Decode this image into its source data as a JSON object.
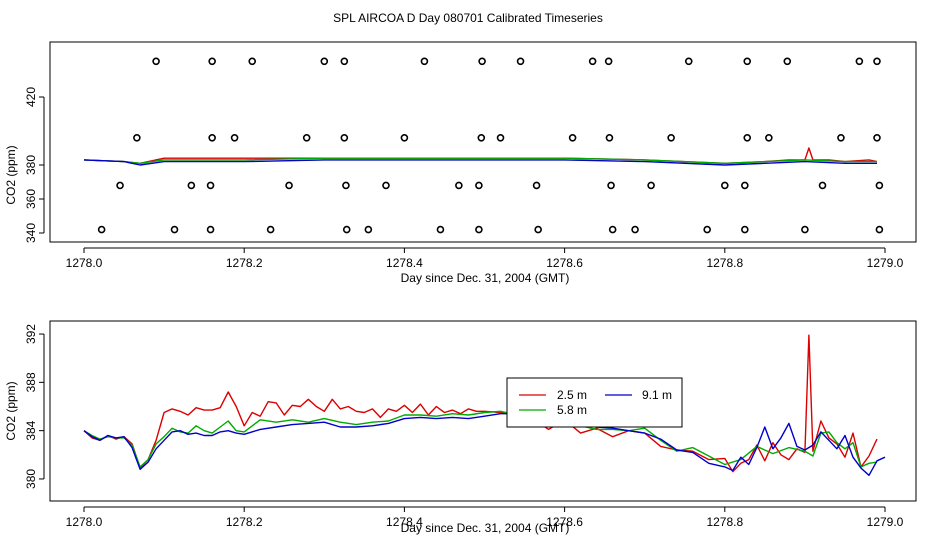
{
  "figure": {
    "title": "SPL AIRCOA D  Day 080701  Calibrated Timeseries"
  },
  "chart_data": [
    {
      "type": "line",
      "panel": "top",
      "xlabel": "Day since Dec. 31, 2004 (GMT)",
      "ylabel": "CO2 (ppm)",
      "xlim": [
        1278.0,
        1279.0
      ],
      "ylim": [
        340,
        450
      ],
      "xticks": [
        "1278.0",
        "1278.2",
        "1278.4",
        "1278.6",
        "1278.8",
        "1279.0"
      ],
      "xtick_values": [
        1278.0,
        1278.2,
        1278.4,
        1278.6,
        1278.8,
        1279.0
      ],
      "yticks": [
        "340",
        "360",
        "380",
        "420"
      ],
      "ytick_values": [
        340,
        360,
        380,
        420
      ],
      "series_style": {
        "color_2_5m": "#dd0000",
        "color_5_8m": "#00aa00",
        "color_9_1m": "#0000cc"
      },
      "series": [
        {
          "name": "2.5 m",
          "color": "#dd0000",
          "x": [
            1278.0,
            1278.05,
            1278.07,
            1278.1,
            1278.15,
            1278.2,
            1278.3,
            1278.4,
            1278.5,
            1278.6,
            1278.7,
            1278.8,
            1278.85,
            1278.88,
            1278.9,
            1278.905,
            1278.91,
            1278.93,
            1278.95,
            1278.98,
            1278.99
          ],
          "y": [
            383,
            382,
            381,
            384,
            384,
            384,
            384,
            384,
            384,
            384,
            383,
            381,
            382,
            383,
            383,
            390,
            383,
            383,
            382,
            383,
            382
          ]
        },
        {
          "name": "5.8 m",
          "color": "#00aa00",
          "x": [
            1278.0,
            1278.05,
            1278.07,
            1278.1,
            1278.2,
            1278.3,
            1278.4,
            1278.5,
            1278.6,
            1278.7,
            1278.8,
            1278.9,
            1278.95,
            1278.99
          ],
          "y": [
            383,
            382,
            381,
            383,
            383,
            384,
            384,
            384,
            384,
            383,
            381,
            383,
            382,
            382
          ]
        },
        {
          "name": "9.1 m",
          "color": "#0000cc",
          "x": [
            1278.0,
            1278.05,
            1278.07,
            1278.1,
            1278.2,
            1278.3,
            1278.4,
            1278.5,
            1278.6,
            1278.7,
            1278.8,
            1278.9,
            1278.95,
            1278.99
          ],
          "y": [
            383,
            382,
            380,
            382,
            382,
            383,
            383,
            383,
            383,
            382,
            380,
            382,
            381,
            381
          ]
        }
      ],
      "markers": {
        "style": "open-circle",
        "rows": [
          {
            "y": 441,
            "x": [
              1278.09,
              1278.16,
              1278.21,
              1278.3,
              1278.325,
              1278.425,
              1278.497,
              1278.545,
              1278.635,
              1278.655,
              1278.755,
              1278.828,
              1278.878,
              1278.968,
              1278.99
            ]
          },
          {
            "y": 396,
            "x": [
              1278.066,
              1278.16,
              1278.188,
              1278.278,
              1278.325,
              1278.4,
              1278.496,
              1278.52,
              1278.61,
              1278.656,
              1278.733,
              1278.828,
              1278.855,
              1278.945,
              1278.99
            ]
          },
          {
            "y": 368,
            "x": [
              1278.045,
              1278.134,
              1278.158,
              1278.256,
              1278.327,
              1278.377,
              1278.468,
              1278.493,
              1278.565,
              1278.658,
              1278.708,
              1278.8,
              1278.825,
              1278.922,
              1278.993
            ]
          },
          {
            "y": 342,
            "x": [
              1278.022,
              1278.113,
              1278.158,
              1278.233,
              1278.328,
              1278.355,
              1278.445,
              1278.493,
              1278.567,
              1278.66,
              1278.688,
              1278.778,
              1278.825,
              1278.9,
              1278.993
            ]
          }
        ]
      }
    },
    {
      "type": "line",
      "panel": "bottom",
      "xlabel": "Day since Dec. 31, 2004 (GMT)",
      "ylabel": "CO2 (ppm)",
      "xlim": [
        1278.0,
        1279.0
      ],
      "ylim": [
        379.5,
        392.5
      ],
      "xticks": [
        "1278.0",
        "1278.2",
        "1278.4",
        "1278.6",
        "1278.8",
        "1279.0"
      ],
      "xtick_values": [
        1278.0,
        1278.2,
        1278.4,
        1278.6,
        1278.8,
        1279.0
      ],
      "yticks": [
        "380",
        "384",
        "388",
        "392"
      ],
      "ytick_values": [
        380,
        384,
        388,
        392
      ],
      "legend": {
        "placement": "center-right",
        "entries": [
          "2.5 m",
          "5.8 m",
          "9.1 m"
        ]
      },
      "series": [
        {
          "name": "2.5 m",
          "color": "#dd0000",
          "x": [
            1278.0,
            1278.01,
            1278.02,
            1278.03,
            1278.04,
            1278.05,
            1278.06,
            1278.07,
            1278.08,
            1278.09,
            1278.1,
            1278.11,
            1278.12,
            1278.13,
            1278.14,
            1278.15,
            1278.16,
            1278.17,
            1278.18,
            1278.19,
            1278.2,
            1278.21,
            1278.22,
            1278.23,
            1278.24,
            1278.25,
            1278.26,
            1278.27,
            1278.28,
            1278.29,
            1278.3,
            1278.31,
            1278.32,
            1278.33,
            1278.34,
            1278.35,
            1278.36,
            1278.37,
            1278.38,
            1278.39,
            1278.4,
            1278.41,
            1278.42,
            1278.43,
            1278.44,
            1278.45,
            1278.46,
            1278.47,
            1278.48,
            1278.49,
            1278.5,
            1278.52,
            1278.54,
            1278.56,
            1278.58,
            1278.6,
            1278.62,
            1278.64,
            1278.66,
            1278.68,
            1278.7,
            1278.72,
            1278.74,
            1278.76,
            1278.78,
            1278.8,
            1278.81,
            1278.82,
            1278.83,
            1278.84,
            1278.85,
            1278.86,
            1278.87,
            1278.88,
            1278.89,
            1278.9,
            1278.905,
            1278.91,
            1278.92,
            1278.93,
            1278.94,
            1278.95,
            1278.96,
            1278.97,
            1278.98,
            1278.99
          ],
          "y": [
            384.0,
            383.4,
            383.2,
            383.6,
            383.3,
            383.5,
            382.9,
            380.9,
            381.6,
            383.2,
            385.5,
            385.8,
            385.6,
            385.3,
            385.9,
            385.7,
            385.7,
            385.9,
            387.2,
            386.0,
            384.4,
            385.5,
            385.2,
            386.4,
            386.3,
            385.3,
            386.1,
            386.0,
            386.6,
            386.0,
            385.6,
            386.6,
            385.8,
            386.0,
            385.6,
            385.5,
            385.8,
            385.1,
            385.8,
            385.6,
            386.1,
            385.5,
            386.2,
            385.3,
            386.0,
            385.5,
            385.7,
            385.4,
            385.8,
            385.6,
            385.6,
            385.5,
            385.4,
            385.0,
            384.1,
            384.9,
            383.8,
            384.2,
            383.5,
            384.0,
            383.8,
            382.7,
            382.4,
            382.3,
            381.6,
            381.7,
            380.6,
            381.3,
            381.6,
            382.8,
            381.5,
            383.0,
            382.0,
            381.6,
            382.5,
            382.2,
            391.9,
            382.3,
            384.8,
            383.4,
            382.9,
            381.8,
            383.8,
            381.0,
            381.9,
            383.3
          ]
        },
        {
          "name": "5.8 m",
          "color": "#00aa00",
          "x": [
            1278.0,
            1278.01,
            1278.02,
            1278.03,
            1278.04,
            1278.05,
            1278.06,
            1278.07,
            1278.08,
            1278.09,
            1278.1,
            1278.11,
            1278.12,
            1278.13,
            1278.14,
            1278.15,
            1278.16,
            1278.17,
            1278.18,
            1278.19,
            1278.2,
            1278.22,
            1278.24,
            1278.26,
            1278.28,
            1278.3,
            1278.32,
            1278.34,
            1278.36,
            1278.38,
            1278.4,
            1278.42,
            1278.44,
            1278.46,
            1278.48,
            1278.5,
            1278.52,
            1278.54,
            1278.56,
            1278.58,
            1278.6,
            1278.62,
            1278.64,
            1278.66,
            1278.68,
            1278.7,
            1278.72,
            1278.74,
            1278.76,
            1278.78,
            1278.8,
            1278.82,
            1278.84,
            1278.86,
            1278.88,
            1278.9,
            1278.91,
            1278.92,
            1278.93,
            1278.94,
            1278.95,
            1278.96,
            1278.97,
            1278.98,
            1278.99
          ],
          "y": [
            384.0,
            383.6,
            383.3,
            383.5,
            383.4,
            383.4,
            382.8,
            381.0,
            381.6,
            382.9,
            383.5,
            384.2,
            383.9,
            383.8,
            384.4,
            384.0,
            383.8,
            384.3,
            384.8,
            384.0,
            383.9,
            384.9,
            384.7,
            384.9,
            384.7,
            385.0,
            384.7,
            384.5,
            384.7,
            384.8,
            385.3,
            385.3,
            385.2,
            385.4,
            385.3,
            385.5,
            385.6,
            385.3,
            385.2,
            384.8,
            384.6,
            384.4,
            384.1,
            384.1,
            384.0,
            384.2,
            383.2,
            382.3,
            382.6,
            381.9,
            381.2,
            381.6,
            382.7,
            382.1,
            382.6,
            382.3,
            381.9,
            383.8,
            383.9,
            383.0,
            382.5,
            383.0,
            381.0,
            381.3,
            381.4
          ]
        },
        {
          "name": "9.1 m",
          "color": "#0000cc",
          "x": [
            1278.0,
            1278.01,
            1278.02,
            1278.03,
            1278.04,
            1278.05,
            1278.06,
            1278.07,
            1278.08,
            1278.09,
            1278.1,
            1278.11,
            1278.12,
            1278.13,
            1278.14,
            1278.15,
            1278.16,
            1278.17,
            1278.18,
            1278.19,
            1278.2,
            1278.22,
            1278.24,
            1278.26,
            1278.28,
            1278.3,
            1278.32,
            1278.34,
            1278.36,
            1278.38,
            1278.4,
            1278.42,
            1278.44,
            1278.46,
            1278.48,
            1278.5,
            1278.52,
            1278.54,
            1278.56,
            1278.58,
            1278.6,
            1278.62,
            1278.64,
            1278.66,
            1278.68,
            1278.7,
            1278.72,
            1278.74,
            1278.76,
            1278.78,
            1278.8,
            1278.81,
            1278.82,
            1278.83,
            1278.84,
            1278.85,
            1278.86,
            1278.87,
            1278.88,
            1278.89,
            1278.9,
            1278.91,
            1278.92,
            1278.93,
            1278.94,
            1278.95,
            1278.96,
            1278.97,
            1278.98,
            1278.99,
            1279.0
          ],
          "y": [
            384.0,
            383.5,
            383.2,
            383.6,
            383.4,
            383.5,
            382.6,
            380.8,
            381.4,
            382.5,
            383.2,
            383.9,
            384.0,
            383.7,
            383.8,
            383.6,
            383.6,
            383.9,
            384.0,
            383.8,
            383.7,
            384.1,
            384.3,
            384.5,
            384.6,
            384.7,
            384.3,
            384.3,
            384.4,
            384.6,
            385.0,
            385.1,
            385.0,
            385.1,
            385.0,
            385.2,
            385.4,
            385.4,
            385.5,
            385.0,
            384.8,
            384.6,
            384.3,
            384.2,
            384.0,
            383.8,
            383.3,
            382.4,
            382.2,
            381.3,
            381.0,
            380.7,
            381.8,
            381.2,
            382.6,
            384.3,
            382.5,
            383.4,
            384.6,
            382.7,
            382.4,
            382.8,
            383.9,
            383.2,
            382.5,
            383.6,
            381.8,
            380.9,
            380.3,
            381.5,
            381.8
          ]
        }
      ]
    }
  ]
}
